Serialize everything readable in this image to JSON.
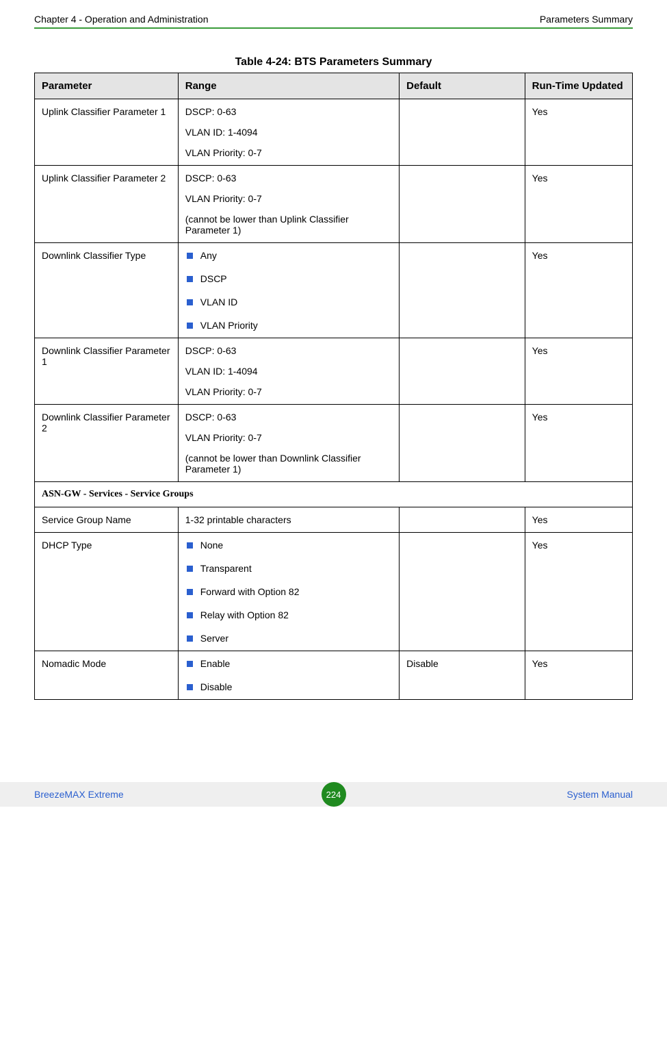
{
  "header": {
    "left": "Chapter 4 - Operation and Administration",
    "right": "Parameters Summary"
  },
  "caption": "Table 4-24: BTS Parameters Summary",
  "columns": {
    "parameter": "Parameter",
    "range": "Range",
    "default": "Default",
    "runtime": "Run-Time Updated"
  },
  "rows": {
    "r1": {
      "param": "Uplink Classifier Parameter 1",
      "range_l1": "DSCP: 0-63",
      "range_l2": "VLAN ID: 1-4094",
      "range_l3": "VLAN Priority: 0-7",
      "default": "",
      "rtu": "Yes"
    },
    "r2": {
      "param": "Uplink Classifier Parameter 2",
      "range_l1": "DSCP: 0-63",
      "range_l2": "VLAN Priority: 0-7",
      "range_l3": "(cannot be lower than Uplink Classifier Parameter 1)",
      "default": "",
      "rtu": "Yes"
    },
    "r3": {
      "param": "Downlink Classifier Type",
      "opt1": "Any",
      "opt2": "DSCP",
      "opt3": "VLAN ID",
      "opt4": "VLAN Priority",
      "default": "",
      "rtu": "Yes"
    },
    "r4": {
      "param": "Downlink Classifier Parameter 1",
      "range_l1": "DSCP: 0-63",
      "range_l2": "VLAN ID: 1-4094",
      "range_l3": "VLAN Priority: 0-7",
      "default": "",
      "rtu": "Yes"
    },
    "r5": {
      "param": "Downlink Classifier Parameter 2",
      "range_l1": "DSCP: 0-63",
      "range_l2": "VLAN Priority: 0-7",
      "range_l3": "(cannot be lower than Downlink Classifier Parameter 1)",
      "default": "",
      "rtu": "Yes"
    },
    "section": "ASN-GW - Services - Service Groups",
    "r6": {
      "param": "Service Group Name",
      "range": "1-32 printable characters",
      "default": "",
      "rtu": "Yes"
    },
    "r7": {
      "param": "DHCP Type",
      "opt1": "None",
      "opt2": "Transparent",
      "opt3": "Forward with Option 82",
      "opt4": "Relay with Option 82",
      "opt5": "Server",
      "default": "",
      "rtu": "Yes"
    },
    "r8": {
      "param": "Nomadic Mode",
      "opt1": "Enable",
      "opt2": "Disable",
      "default": "Disable",
      "rtu": "Yes"
    }
  },
  "footer": {
    "left": "BreezeMAX Extreme",
    "page": "224",
    "right": "System Manual"
  },
  "colors": {
    "header_bg": "#e4e4e4",
    "bullet": "#2a5fcf",
    "green_line": "#3a9b3a",
    "circle": "#1f8a1f",
    "footer_bg": "#efefef",
    "link": "#2a5fcf"
  }
}
